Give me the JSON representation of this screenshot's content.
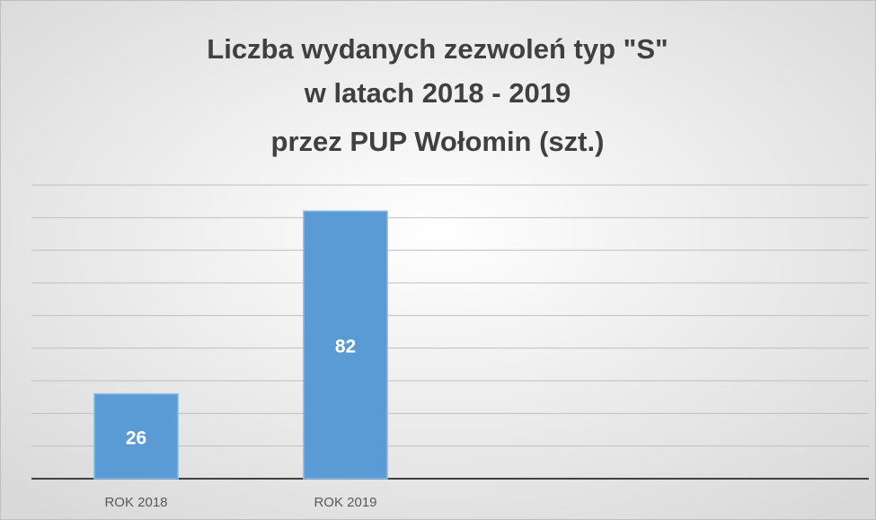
{
  "chart_data": {
    "type": "bar",
    "title": [
      "Liczba wydanych zezwoleń typ \"S\"",
      "w latach 2018 - 2019",
      "przez PUP Wołomin (szt.)"
    ],
    "categories": [
      "ROK 2018",
      "ROK 2019",
      null,
      null
    ],
    "values": [
      26,
      82,
      null,
      null
    ],
    "color": "#5b9bd5",
    "ylim": [
      0,
      90
    ],
    "yticks": [
      0,
      10,
      20,
      30,
      40,
      50,
      60,
      70,
      80,
      90
    ],
    "grid": true
  }
}
